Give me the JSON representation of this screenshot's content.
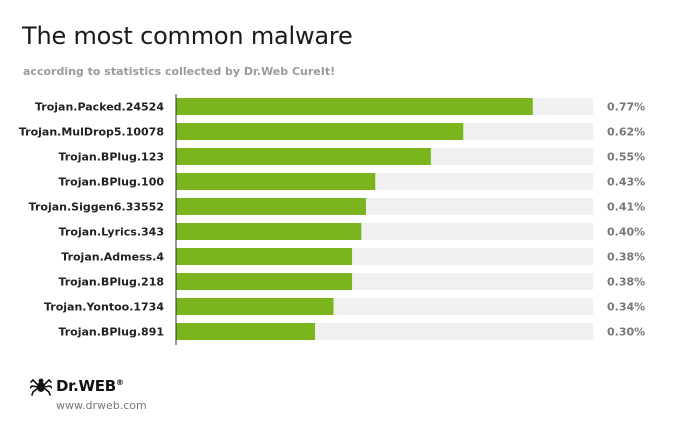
{
  "header": {
    "title": "The most common malware",
    "subtitle": "according to statistics collected by Dr.Web CureIt!"
  },
  "footer": {
    "brand": "Dr.WEB",
    "brand_mark": "®",
    "url": "www.drweb.com",
    "logo_icon": "spider-icon"
  },
  "colors": {
    "bar": "#7ab51d",
    "track": "#f0f0f0",
    "axis": "#333333"
  },
  "chart_data": {
    "type": "bar",
    "orientation": "horizontal",
    "title": "The most common malware",
    "subtitle": "according to statistics collected by Dr.Web CureIt!",
    "categories": [
      "Trojan.Packed.24524",
      "Trojan.MulDrop5.10078",
      "Trojan.BPlug.123",
      "Trojan.BPlug.100",
      "Trojan.Siggen6.33552",
      "Trojan.Lyrics.343",
      "Trojan.Admess.4",
      "Trojan.BPlug.218",
      "Trojan.Yontoo.1734",
      "Trojan.BPlug.891"
    ],
    "values": [
      0.77,
      0.62,
      0.55,
      0.43,
      0.41,
      0.4,
      0.38,
      0.38,
      0.34,
      0.3
    ],
    "value_labels": [
      "0.77%",
      "0.62%",
      "0.55%",
      "0.43%",
      "0.41%",
      "0.40%",
      "0.38%",
      "0.38%",
      "0.34%",
      "0.30%"
    ],
    "xlim": [
      0,
      0.9
    ],
    "grid": false
  }
}
